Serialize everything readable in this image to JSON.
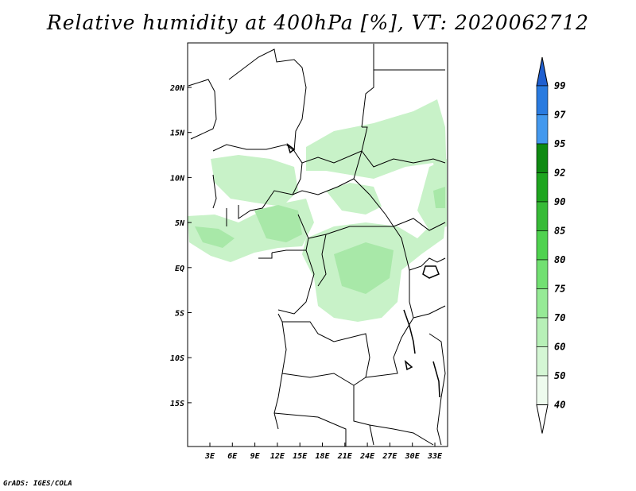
{
  "title": "Relative humidity at 400hPa [%], VT: 2020062712",
  "footer": "GrADS: IGES/COLA",
  "map": {
    "lon_ticks": [
      "3E",
      "6E",
      "9E",
      "12E",
      "15E",
      "18E",
      "21E",
      "24E",
      "27E",
      "30E",
      "33E"
    ],
    "lat_ticks": [
      "20N",
      "15N",
      "10N",
      "5N",
      "EQ",
      "5S",
      "10S",
      "15S"
    ]
  },
  "colorbar": {
    "levels": [
      "99",
      "97",
      "95",
      "92",
      "90",
      "85",
      "80",
      "75",
      "70",
      "60",
      "50",
      "40"
    ],
    "colors": [
      "#1f5fd0",
      "#2a7be0",
      "#4499ee",
      "#0f8a12",
      "#1ea51f",
      "#37bb37",
      "#4fd24f",
      "#72e072",
      "#96ea96",
      "#b7f0b7",
      "#d4f6d4",
      "#eefbee"
    ]
  }
}
